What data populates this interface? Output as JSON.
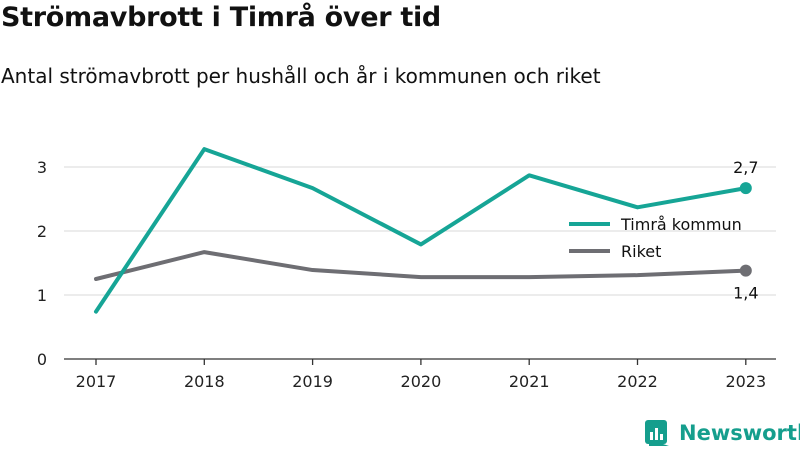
{
  "title": "Strömavbrott i Timrå över tid",
  "subtitle": "Antal strömavbrott per hushåll och år i kommunen och riket",
  "brand": {
    "name": "Newsworthy",
    "icon": "newsworthy-logo-icon"
  },
  "colors": {
    "series_1": "#16a596",
    "series_2": "#6e6e73",
    "grid": "#d9d9d9",
    "axis": "#333333"
  },
  "chart_data": {
    "type": "line",
    "x": [
      "2017",
      "2018",
      "2019",
      "2020",
      "2021",
      "2022",
      "2023"
    ],
    "yticks": [
      "0",
      "1",
      "2",
      "3"
    ],
    "ylim": [
      0,
      3
    ],
    "grid": true,
    "legend_position": "right",
    "series": [
      {
        "name": "Timrå kommun",
        "values": [
          0.74,
          3.28,
          2.67,
          1.79,
          2.87,
          2.37,
          2.67
        ],
        "end_label": "2,7"
      },
      {
        "name": "Riket",
        "values": [
          1.25,
          1.67,
          1.39,
          1.28,
          1.28,
          1.31,
          1.38
        ],
        "end_label": "1,4"
      }
    ]
  }
}
